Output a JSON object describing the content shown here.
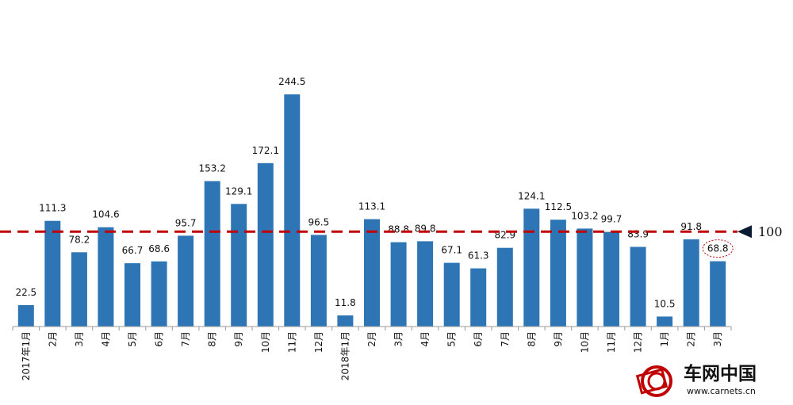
{
  "chart_data": {
    "type": "bar",
    "title": "",
    "xlabel": "",
    "ylabel": "",
    "ylim": [
      0,
      250
    ],
    "grid": false,
    "legend": "none",
    "bar_color": "#2e75b6",
    "categories": [
      "2017年1月",
      "2月",
      "3月",
      "4月",
      "5月",
      "6月",
      "7月",
      "8月",
      "9月",
      "10月",
      "11月",
      "12月",
      "2018年1月",
      "2月",
      "3月",
      "4月",
      "5月",
      "6月",
      "7月",
      "8月",
      "9月",
      "10月",
      "11月",
      "12月",
      "1月",
      "2月",
      "3月"
    ],
    "values": [
      22.5,
      111.3,
      78.2,
      104.6,
      66.7,
      68.6,
      95.7,
      153.2,
      129.1,
      172.1,
      244.5,
      96.5,
      11.8,
      113.1,
      88.8,
      89.8,
      67.1,
      61.3,
      82.9,
      124.1,
      112.5,
      103.2,
      99.7,
      83.9,
      10.5,
      91.8,
      68.8
    ],
    "value_labels": [
      "22.5",
      "111.3",
      "78.2",
      "104.6",
      "66.7",
      "68.6",
      "95.7",
      "153.2",
      "129.1",
      "172.1",
      "244.5",
      "96.5",
      "11.8",
      "113.1",
      "88.8",
      "89.8",
      "67.1",
      "61.3",
      "82.9",
      "124.1",
      "112.5",
      "103.2",
      "99.7",
      "83.9",
      "10.5",
      "91.8",
      "68.8"
    ],
    "reference_line": {
      "value": 100,
      "label": "100",
      "color": "#c00000",
      "style": "dashed"
    },
    "highlighted_index": 26,
    "highlight_color": "#c00000"
  },
  "watermark": {
    "brand": "车网中国",
    "url": "www.carnets.cn"
  }
}
